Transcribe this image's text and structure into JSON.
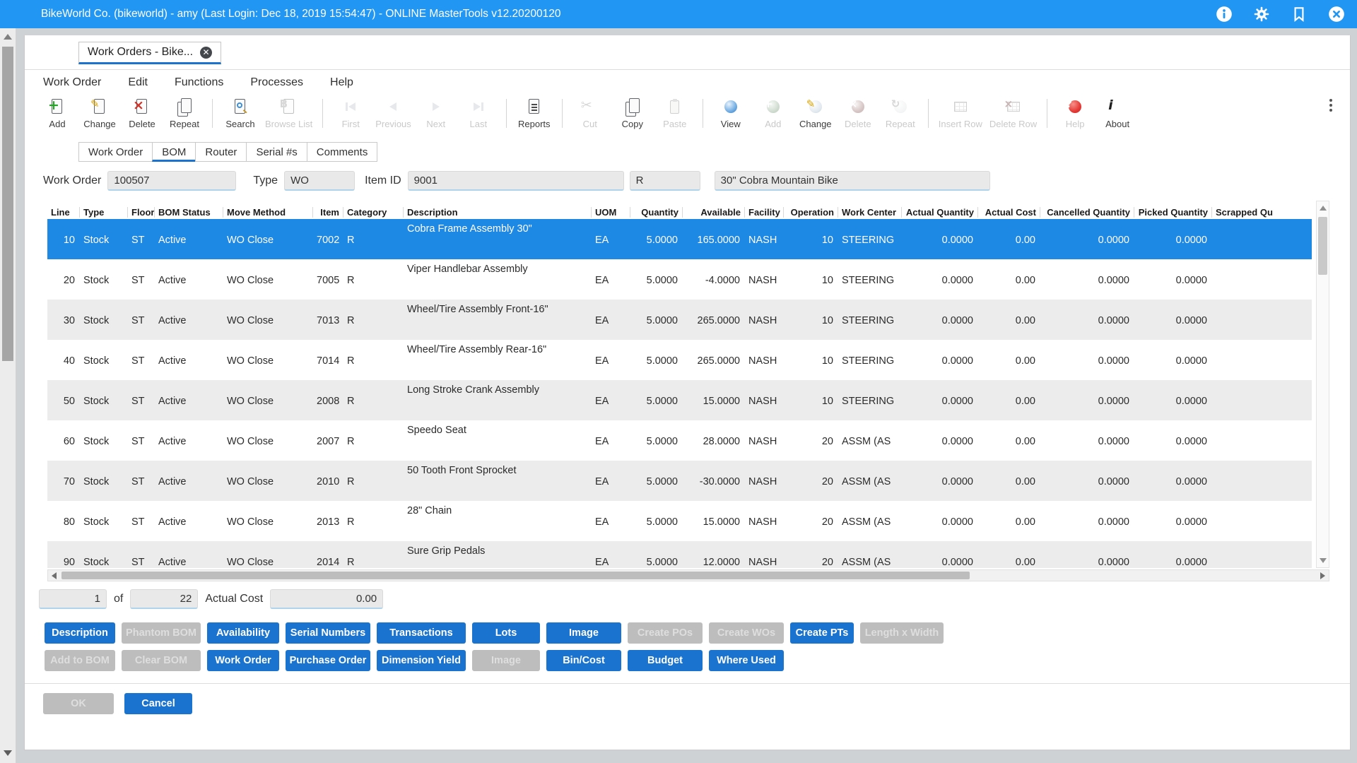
{
  "titlebar": {
    "title": "BikeWorld Co. (bikeworld) - amy (Last Login: Dec 18, 2019 15:54:47) - ONLINE MasterTools v12.20200120",
    "icons": [
      "info-icon",
      "settings-icon",
      "bookmark-icon",
      "close-icon"
    ],
    "color": "#2196f3"
  },
  "tab": {
    "label": "Work Orders - Bike...",
    "close_icon": "tab-close-icon"
  },
  "menus": [
    "Work Order",
    "Edit",
    "Functions",
    "Processes",
    "Help"
  ],
  "toolbar": {
    "groups": [
      [
        {
          "label": "Add",
          "icon": "page-add",
          "enabled": true
        },
        {
          "label": "Change",
          "icon": "page-edit",
          "enabled": true
        },
        {
          "label": "Delete",
          "icon": "page-delete",
          "enabled": true
        },
        {
          "label": "Repeat",
          "icon": "pages",
          "enabled": true
        }
      ],
      [
        {
          "label": "Search",
          "icon": "page-search",
          "enabled": true
        },
        {
          "label": "Browse List",
          "icon": "page-b",
          "enabled": false
        }
      ],
      [
        {
          "label": "First",
          "icon": "nav-first",
          "enabled": false
        },
        {
          "label": "Previous",
          "icon": "nav-prev",
          "enabled": false
        },
        {
          "label": "Next",
          "icon": "nav-next",
          "enabled": false
        },
        {
          "label": "Last",
          "icon": "nav-last",
          "enabled": false
        }
      ],
      [
        {
          "label": "Reports",
          "icon": "report",
          "enabled": true
        }
      ],
      [
        {
          "label": "Cut",
          "icon": "cut",
          "enabled": false
        },
        {
          "label": "Copy",
          "icon": "copy",
          "enabled": true
        },
        {
          "label": "Paste",
          "icon": "paste",
          "enabled": false
        }
      ],
      [
        {
          "label": "View",
          "icon": "orb-view",
          "enabled": true
        },
        {
          "label": "Add",
          "icon": "orb-add",
          "enabled": false
        },
        {
          "label": "Change",
          "icon": "orb-edit",
          "enabled": true
        },
        {
          "label": "Delete",
          "icon": "orb-delete",
          "enabled": false
        },
        {
          "label": "Repeat",
          "icon": "orb-repeat",
          "enabled": false
        }
      ],
      [
        {
          "label": "Insert Row",
          "icon": "grid",
          "enabled": false
        },
        {
          "label": "Delete Row",
          "icon": "grid-x",
          "enabled": false
        }
      ],
      [
        {
          "label": "Help",
          "icon": "orb-help",
          "enabled": true,
          "dim_label": true
        },
        {
          "label": "About",
          "icon": "info-i",
          "enabled": true
        }
      ]
    ],
    "overflow_icon": "kebab-icon"
  },
  "subtabs": {
    "items": [
      "Work Order",
      "BOM",
      "Router",
      "Serial #s",
      "Comments"
    ],
    "active_index": 1
  },
  "form": {
    "fields": [
      {
        "label": "Work Order",
        "value": "100507"
      },
      {
        "label": "Type",
        "value": "WO"
      },
      {
        "label": "Item ID",
        "value": "9001"
      },
      {
        "label": "",
        "value": "R"
      },
      {
        "label": "",
        "value": "30\" Cobra Mountain Bike"
      }
    ]
  },
  "table": {
    "columns": [
      {
        "label": "Line",
        "align": "right"
      },
      {
        "label": "Type",
        "align": "left"
      },
      {
        "label": "Floor",
        "align": "left"
      },
      {
        "label": "BOM Status",
        "align": "left"
      },
      {
        "label": "Move Method",
        "align": "left"
      },
      {
        "label": "Item",
        "align": "right"
      },
      {
        "label": "Category",
        "align": "left"
      },
      {
        "label": "Description",
        "align": "left"
      },
      {
        "label": "UOM",
        "align": "left"
      },
      {
        "label": "Quantity",
        "align": "right"
      },
      {
        "label": "Available",
        "align": "right"
      },
      {
        "label": "Facility",
        "align": "left"
      },
      {
        "label": "Operation",
        "align": "right"
      },
      {
        "label": "Work Center",
        "align": "left"
      },
      {
        "label": "Actual Quantity",
        "align": "right"
      },
      {
        "label": "Actual Cost",
        "align": "right"
      },
      {
        "label": "Cancelled Quantity",
        "align": "right"
      },
      {
        "label": "Picked Quantity",
        "align": "right"
      },
      {
        "label": "Scrapped Qu",
        "align": "left"
      }
    ],
    "selected_row_index": 0,
    "rows": [
      [
        "10",
        "Stock",
        "ST",
        "Active",
        "WO Close",
        "7002",
        "R",
        "Cobra Frame Assembly 30\"",
        "EA",
        "5.0000",
        "165.0000",
        "NASH",
        "10",
        "STEERING",
        "0.0000",
        "0.00",
        "0.0000",
        "0.0000",
        ""
      ],
      [
        "20",
        "Stock",
        "ST",
        "Active",
        "WO Close",
        "7005",
        "R",
        "Viper Handlebar Assembly",
        "EA",
        "5.0000",
        "-4.0000",
        "NASH",
        "10",
        "STEERING",
        "0.0000",
        "0.00",
        "0.0000",
        "0.0000",
        ""
      ],
      [
        "30",
        "Stock",
        "ST",
        "Active",
        "WO Close",
        "7013",
        "R",
        "Wheel/Tire Assembly Front-16\"",
        "EA",
        "5.0000",
        "265.0000",
        "NASH",
        "10",
        "STEERING",
        "0.0000",
        "0.00",
        "0.0000",
        "0.0000",
        ""
      ],
      [
        "40",
        "Stock",
        "ST",
        "Active",
        "WO Close",
        "7014",
        "R",
        "Wheel/Tire Assembly Rear-16\"",
        "EA",
        "5.0000",
        "265.0000",
        "NASH",
        "10",
        "STEERING",
        "0.0000",
        "0.00",
        "0.0000",
        "0.0000",
        ""
      ],
      [
        "50",
        "Stock",
        "ST",
        "Active",
        "WO Close",
        "2008",
        "R",
        "Long Stroke Crank Assembly",
        "EA",
        "5.0000",
        "15.0000",
        "NASH",
        "10",
        "STEERING",
        "0.0000",
        "0.00",
        "0.0000",
        "0.0000",
        ""
      ],
      [
        "60",
        "Stock",
        "ST",
        "Active",
        "WO Close",
        "2007",
        "R",
        "Speedo Seat",
        "EA",
        "5.0000",
        "28.0000",
        "NASH",
        "20",
        "ASSM (AS",
        "0.0000",
        "0.00",
        "0.0000",
        "0.0000",
        ""
      ],
      [
        "70",
        "Stock",
        "ST",
        "Active",
        "WO Close",
        "2010",
        "R",
        "50 Tooth Front Sprocket",
        "EA",
        "5.0000",
        "-30.0000",
        "NASH",
        "20",
        "ASSM (AS",
        "0.0000",
        "0.00",
        "0.0000",
        "0.0000",
        ""
      ],
      [
        "80",
        "Stock",
        "ST",
        "Active",
        "WO Close",
        "2013",
        "R",
        "28\" Chain",
        "EA",
        "5.0000",
        "15.0000",
        "NASH",
        "20",
        "ASSM (AS",
        "0.0000",
        "0.00",
        "0.0000",
        "0.0000",
        ""
      ],
      [
        "90",
        "Stock",
        "ST",
        "Active",
        "WO Close",
        "2014",
        "R",
        "Sure Grip Pedals",
        "EA",
        "5.0000",
        "12.0000",
        "NASH",
        "20",
        "ASSM (AS",
        "0.0000",
        "0.00",
        "0.0000",
        "0.0000",
        ""
      ]
    ]
  },
  "footer": {
    "page": "1",
    "of_label": "of",
    "total_pages": "22",
    "actual_cost_label": "Actual Cost",
    "actual_cost": "0.00"
  },
  "action_buttons": {
    "rows": [
      [
        {
          "label": "Description",
          "enabled": true
        },
        {
          "label": "Phantom BOM",
          "enabled": false
        },
        {
          "label": "Availability",
          "enabled": true
        },
        {
          "label": "Serial Numbers",
          "enabled": true
        },
        {
          "label": "Transactions",
          "enabled": true
        },
        {
          "label": "Lots",
          "enabled": true
        },
        {
          "label": "Image",
          "enabled": true
        },
        {
          "label": "Create POs",
          "enabled": false
        },
        {
          "label": "Create WOs",
          "enabled": false
        },
        {
          "label": "Create PTs",
          "enabled": true
        },
        {
          "label": "Length x Width",
          "enabled": false
        }
      ],
      [
        {
          "label": "Add to BOM",
          "enabled": false
        },
        {
          "label": "Clear BOM",
          "enabled": false
        },
        {
          "label": "Work Order",
          "enabled": true
        },
        {
          "label": "Purchase Order",
          "enabled": true
        },
        {
          "label": "Dimension Yield",
          "enabled": true
        },
        {
          "label": "Image",
          "enabled": false
        },
        {
          "label": "Bin/Cost",
          "enabled": true
        },
        {
          "label": "Budget",
          "enabled": true
        },
        {
          "label": "Where Used",
          "enabled": true
        }
      ]
    ]
  },
  "dialog": {
    "ok": "OK",
    "cancel": "Cancel"
  },
  "colors": {
    "titlebar_blue": "#2196f3",
    "selected_row_blue": "#1e88e5",
    "button_blue": "#1a73cf",
    "disabled_grey": "#bdbdbd",
    "alt_row_grey": "#ececec"
  }
}
